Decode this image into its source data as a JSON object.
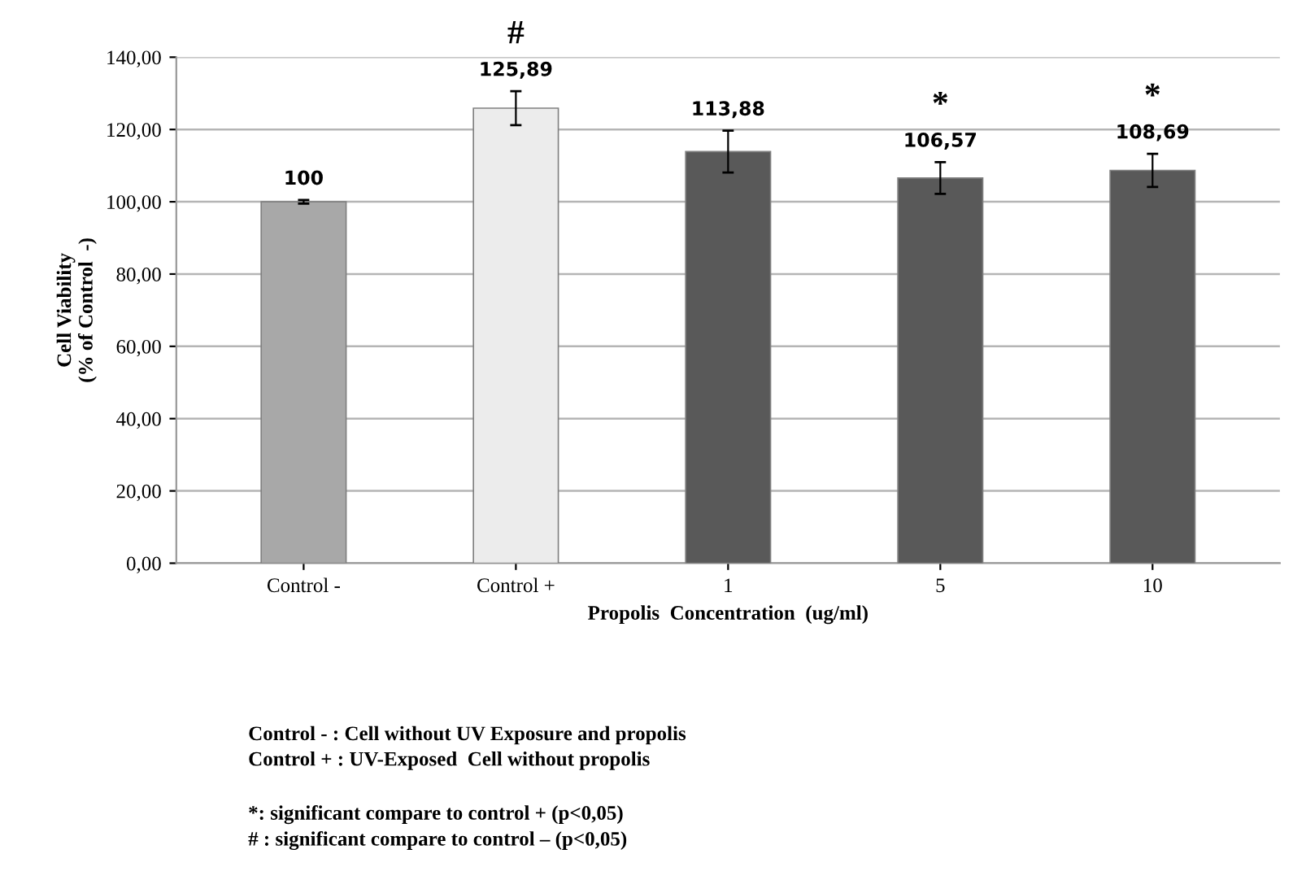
{
  "chart_data": {
    "type": "bar",
    "xlabel": "Propolis  Concentration  (ug/ml)",
    "ylabel": "Cell Viability\n(% of Control  -)",
    "categories": [
      "Control -",
      "Control +",
      "1",
      "5",
      "10"
    ],
    "values": [
      100,
      125.89,
      113.88,
      106.57,
      108.69
    ],
    "value_labels": [
      "100",
      "125,89",
      "113,88",
      "106,57",
      "108,69"
    ],
    "errors": [
      0.5,
      4.7,
      5.8,
      4.4,
      4.6
    ],
    "colors": [
      "#a8a8a8",
      "#ececec",
      "#595959",
      "#595959",
      "#595959"
    ],
    "ylim": [
      0,
      140
    ],
    "yticks": [
      {
        "value": 0,
        "label": "0,00"
      },
      {
        "value": 20,
        "label": "20,00"
      },
      {
        "value": 40,
        "label": "40,00"
      },
      {
        "value": 60,
        "label": "60,00"
      },
      {
        "value": 80,
        "label": "80,00"
      },
      {
        "value": 100,
        "label": "100,00"
      },
      {
        "value": 120,
        "label": "120,00"
      },
      {
        "value": 140,
        "label": "140,00"
      }
    ],
    "grid": "y",
    "annotations": [
      {
        "text": "#",
        "x": "Control +",
        "y": 125.89
      },
      {
        "text": "*",
        "x": "5",
        "y": 106.57
      },
      {
        "text": "*",
        "x": "10",
        "y": 108.69
      },
      "Control - : Cell without UV Exposure and propolis\nControl + : UV-Exposed  Cell without propolis",
      "*: significant compare to control + (p<0,05)\n# : significant compare to control – (p<0,05)"
    ]
  }
}
